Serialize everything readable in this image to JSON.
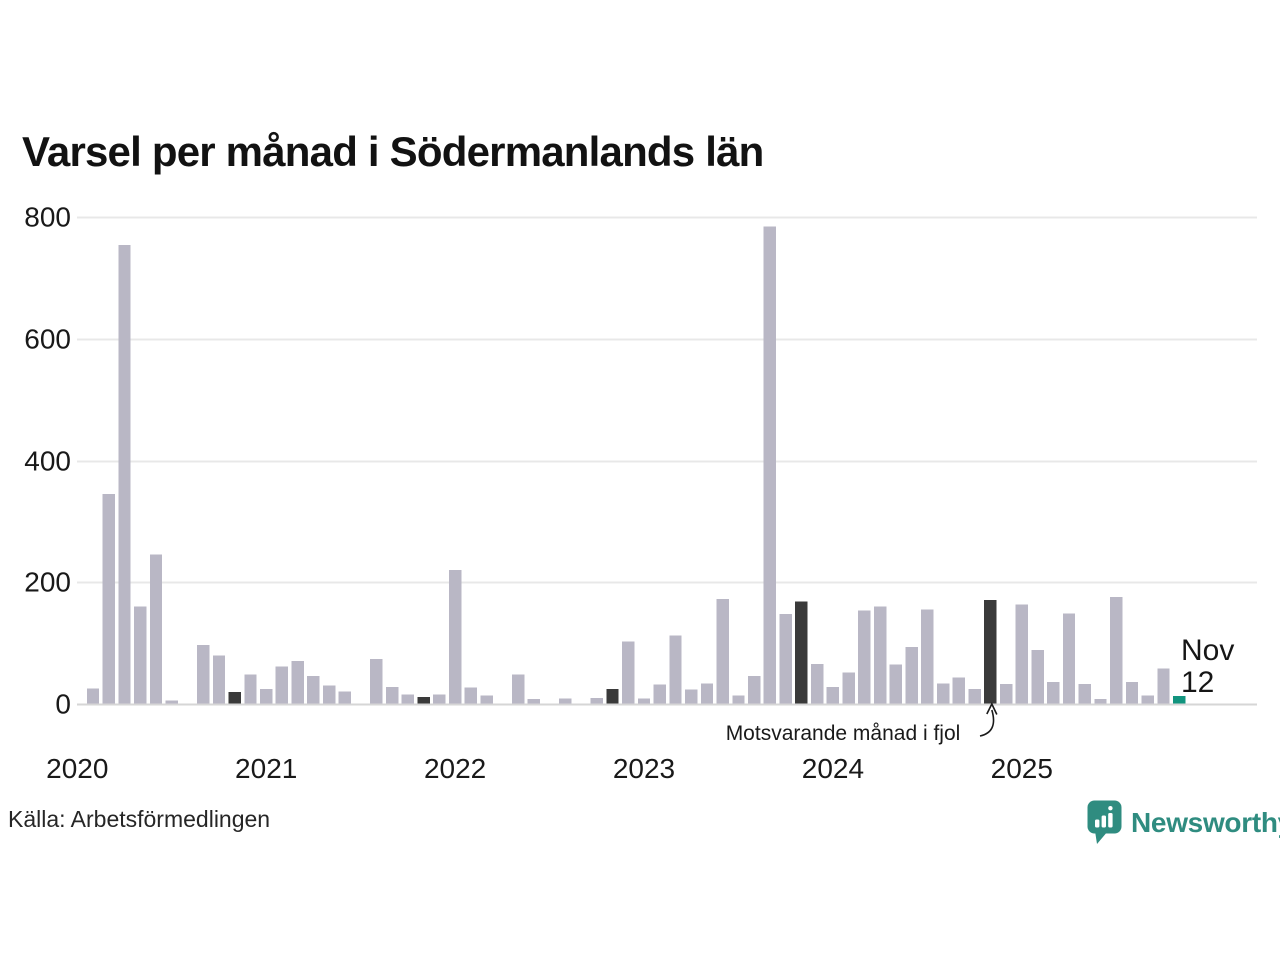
{
  "chart_data": {
    "type": "bar",
    "title": "Varsel per månad i Södermanlands län",
    "xlabel": "",
    "ylabel": "",
    "ylim": [
      0,
      800
    ],
    "yticks": [
      0,
      200,
      400,
      600,
      800
    ],
    "xticks": [
      "2020",
      "2021",
      "2022",
      "2023",
      "2024",
      "2025"
    ],
    "grid": "horizontal",
    "legend_position": "none",
    "annotation": {
      "text": "Motsvarande månad i fjol",
      "points_to_month": "2024-11"
    },
    "end_label": {
      "line1": "Nov",
      "line2": "12",
      "month": "2025-11"
    },
    "colors": {
      "regular": "#b9b7c5",
      "same_month_last_years": "#3a3a3a",
      "current_month": "#12947e"
    },
    "series": [
      {
        "name": "Varsel per månad",
        "points": [
          {
            "m": "2020-01",
            "v": 0
          },
          {
            "m": "2020-02",
            "v": 25
          },
          {
            "m": "2020-03",
            "v": 345
          },
          {
            "m": "2020-04",
            "v": 755
          },
          {
            "m": "2020-05",
            "v": 160
          },
          {
            "m": "2020-06",
            "v": 245
          },
          {
            "m": "2020-07",
            "v": 5
          },
          {
            "m": "2020-08",
            "v": 0
          },
          {
            "m": "2020-09",
            "v": 96
          },
          {
            "m": "2020-10",
            "v": 79
          },
          {
            "m": "2020-11",
            "v": 19,
            "k": "same_month_last_years"
          },
          {
            "m": "2020-12",
            "v": 48
          },
          {
            "m": "2021-01",
            "v": 24
          },
          {
            "m": "2021-02",
            "v": 61
          },
          {
            "m": "2021-03",
            "v": 70
          },
          {
            "m": "2021-04",
            "v": 45
          },
          {
            "m": "2021-05",
            "v": 30
          },
          {
            "m": "2021-06",
            "v": 20
          },
          {
            "m": "2021-07",
            "v": 0
          },
          {
            "m": "2021-08",
            "v": 73
          },
          {
            "m": "2021-09",
            "v": 27
          },
          {
            "m": "2021-10",
            "v": 15
          },
          {
            "m": "2021-11",
            "v": 11,
            "k": "same_month_last_years"
          },
          {
            "m": "2021-12",
            "v": 15
          },
          {
            "m": "2022-01",
            "v": 220
          },
          {
            "m": "2022-02",
            "v": 26
          },
          {
            "m": "2022-03",
            "v": 13
          },
          {
            "m": "2022-04",
            "v": 0
          },
          {
            "m": "2022-05",
            "v": 48
          },
          {
            "m": "2022-06",
            "v": 7
          },
          {
            "m": "2022-07",
            "v": 0
          },
          {
            "m": "2022-08",
            "v": 8
          },
          {
            "m": "2022-09",
            "v": 0
          },
          {
            "m": "2022-10",
            "v": 9
          },
          {
            "m": "2022-11",
            "v": 24,
            "k": "same_month_last_years"
          },
          {
            "m": "2022-12",
            "v": 102
          },
          {
            "m": "2023-01",
            "v": 8
          },
          {
            "m": "2023-02",
            "v": 31
          },
          {
            "m": "2023-03",
            "v": 112
          },
          {
            "m": "2023-04",
            "v": 23
          },
          {
            "m": "2023-05",
            "v": 33
          },
          {
            "m": "2023-06",
            "v": 172
          },
          {
            "m": "2023-07",
            "v": 13
          },
          {
            "m": "2023-08",
            "v": 45
          },
          {
            "m": "2023-09",
            "v": 785
          },
          {
            "m": "2023-10",
            "v": 147
          },
          {
            "m": "2023-11",
            "v": 168,
            "k": "same_month_last_years"
          },
          {
            "m": "2023-12",
            "v": 65
          },
          {
            "m": "2024-01",
            "v": 27
          },
          {
            "m": "2024-02",
            "v": 51
          },
          {
            "m": "2024-03",
            "v": 153
          },
          {
            "m": "2024-04",
            "v": 160
          },
          {
            "m": "2024-05",
            "v": 64
          },
          {
            "m": "2024-06",
            "v": 93
          },
          {
            "m": "2024-07",
            "v": 155
          },
          {
            "m": "2024-08",
            "v": 33
          },
          {
            "m": "2024-09",
            "v": 43
          },
          {
            "m": "2024-10",
            "v": 24
          },
          {
            "m": "2024-11",
            "v": 170,
            "k": "same_month_last_years"
          },
          {
            "m": "2024-12",
            "v": 32
          },
          {
            "m": "2025-01",
            "v": 163
          },
          {
            "m": "2025-02",
            "v": 88
          },
          {
            "m": "2025-03",
            "v": 35
          },
          {
            "m": "2025-04",
            "v": 148
          },
          {
            "m": "2025-05",
            "v": 32
          },
          {
            "m": "2025-06",
            "v": 7
          },
          {
            "m": "2025-07",
            "v": 175
          },
          {
            "m": "2025-08",
            "v": 35
          },
          {
            "m": "2025-09",
            "v": 13
          },
          {
            "m": "2025-10",
            "v": 58
          },
          {
            "m": "2025-11",
            "v": 12,
            "k": "current_month"
          }
        ]
      }
    ]
  },
  "source": "Källa: Arbetsförmedlingen",
  "logo": {
    "text": "Newsworthy"
  }
}
